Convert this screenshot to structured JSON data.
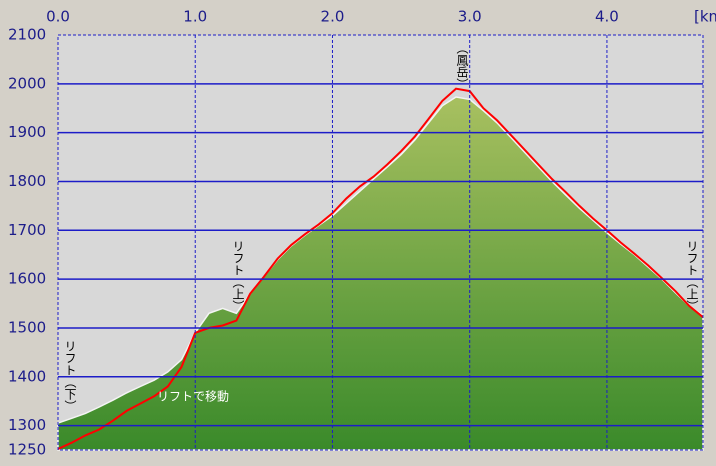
{
  "chart_data": {
    "type": "area",
    "x_unit": "[km",
    "x": [
      0,
      0.1,
      0.2,
      0.3,
      0.4,
      0.5,
      0.6,
      0.7,
      0.8,
      0.9,
      1.0,
      1.1,
      1.2,
      1.3,
      1.4,
      1.5,
      1.6,
      1.7,
      1.8,
      1.9,
      2.0,
      2.1,
      2.2,
      2.3,
      2.4,
      2.5,
      2.6,
      2.7,
      2.8,
      2.9,
      3.0,
      3.1,
      3.2,
      3.3,
      3.4,
      3.5,
      3.6,
      3.7,
      3.8,
      3.9,
      4.0,
      4.1,
      4.2,
      4.3,
      4.4,
      4.5,
      4.6,
      4.7
    ],
    "series": [
      {
        "color": "#6e9e3a",
        "values": [
          1305,
          1315,
          1325,
          1338,
          1352,
          1367,
          1380,
          1393,
          1410,
          1435,
          1490,
          1530,
          1540,
          1530,
          1570,
          1605,
          1640,
          1668,
          1690,
          1710,
          1730,
          1755,
          1780,
          1805,
          1830,
          1855,
          1885,
          1920,
          1955,
          1973,
          1968,
          1945,
          1920,
          1890,
          1860,
          1830,
          1800,
          1772,
          1745,
          1720,
          1695,
          1672,
          1650,
          1625,
          1600,
          1572,
          1545,
          1525
        ]
      },
      {
        "color": "#ff0000",
        "values": [
          1252,
          1265,
          1280,
          1292,
          1310,
          1330,
          1345,
          1360,
          1380,
          1420,
          1490,
          1500,
          1505,
          1515,
          1570,
          1605,
          1642,
          1670,
          1692,
          1712,
          1735,
          1765,
          1790,
          1810,
          1835,
          1862,
          1892,
          1928,
          1965,
          1990,
          1985,
          1950,
          1925,
          1895,
          1865,
          1835,
          1805,
          1778,
          1750,
          1724,
          1700,
          1675,
          1652,
          1628,
          1602,
          1575,
          1545,
          1522
        ]
      }
    ],
    "xlim": [
      0,
      4.7
    ],
    "xticks": [
      {
        "value": 0,
        "label": "0.0"
      },
      {
        "value": 1,
        "label": "1.0"
      },
      {
        "value": 2,
        "label": "2.0"
      },
      {
        "value": 3,
        "label": "3.0"
      },
      {
        "value": 4,
        "label": "4.0"
      }
    ],
    "ylim": [
      1250,
      2100
    ],
    "yticks": [
      1250,
      1300,
      1400,
      1500,
      1600,
      1700,
      1800,
      1900,
      2000,
      2100
    ],
    "grid": true,
    "annotations": [
      "リフト（下）",
      "リフト（上）",
      "（鳳岳）",
      "リフト（上）",
      "リフトで移動"
    ]
  }
}
